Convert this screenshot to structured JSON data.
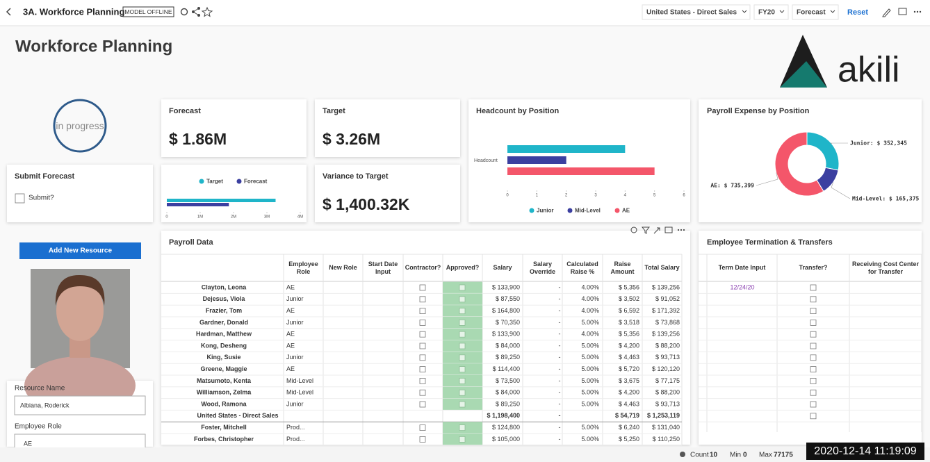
{
  "header": {
    "title": "3A. Workforce Planning",
    "badge": "MODEL OFFLINE",
    "filters": [
      "United States - Direct Sales",
      "FY20",
      "Forecast"
    ],
    "reset": "Reset"
  },
  "page_title": "Workforce Planning",
  "logo_text": "akili",
  "status": "in progress",
  "kpis": {
    "forecast": {
      "label": "Forecast",
      "value": "$ 1.86M"
    },
    "target": {
      "label": "Target",
      "value": "$ 3.26M"
    },
    "variance": {
      "label": "Variance to Target",
      "value": "$ 1,400.32K"
    }
  },
  "submit": {
    "title": "Submit Forecast",
    "checkbox": "Submit?"
  },
  "target_chart": {
    "type": "bar",
    "orientation": "horizontal",
    "series": [
      {
        "name": "Target",
        "color": "#1fb5c9",
        "values": [
          3.26
        ]
      },
      {
        "name": "Forecast",
        "color": "#3b3fa0",
        "values": [
          1.86
        ]
      }
    ],
    "xlim": [
      0,
      4
    ],
    "xticks": [
      0,
      {
        "value": 1,
        "label": "1M"
      },
      {
        "value": 2,
        "label": "2M"
      },
      {
        "value": 3,
        "label": "3M"
      },
      {
        "value": 4,
        "label": "4M"
      }
    ],
    "legend": "top"
  },
  "headcount_chart": {
    "type": "bar",
    "orientation": "horizontal",
    "title": "Headcount by Position",
    "categories": [
      "Headcount"
    ],
    "series": [
      {
        "name": "Junior",
        "color": "#1fb5c9",
        "values": [
          4
        ]
      },
      {
        "name": "Mid-Level",
        "color": "#3b3fa0",
        "values": [
          2
        ]
      },
      {
        "name": "AE",
        "color": "#f4566a",
        "values": [
          5
        ]
      }
    ],
    "xlim": [
      0,
      6
    ],
    "xticks": [
      0,
      1,
      2,
      3,
      4,
      5,
      6
    ],
    "legend": "bottom"
  },
  "payroll_chart": {
    "type": "donut",
    "title": "Payroll Expense by Position",
    "categories": [
      "Junior",
      "Mid-Level",
      "AE"
    ],
    "values": [
      352345,
      165375,
      735399
    ],
    "value_labels": [
      "Junior: $ 352,345",
      "Mid-Level: $ 165,375",
      "AE: $ 735,399"
    ],
    "colors": [
      "#1fb5c9",
      "#3b3fa0",
      "#f4566a"
    ]
  },
  "left_panel": {
    "button": "Add New Resource",
    "resource_name_label": "Resource Name",
    "resource_name": "Albiana, Roderick",
    "employee_role_label": "Employee Role",
    "employee_role": "AE"
  },
  "payroll_table": {
    "title": "Payroll Data",
    "headers": [
      "Employee Role",
      "New Role",
      "Start Date Input",
      "Contractor?",
      "Approved?",
      "Salary",
      "Salary Override",
      "Calculated Raise %",
      "Raise Amount",
      "Total Salary"
    ],
    "rows": [
      {
        "name": "Clayton, Leona",
        "role": "AE",
        "salary": "$ 133,900",
        "override": "-",
        "raise_pct": "4.00%",
        "raise_amount": "$ 5,356",
        "total": "$ 139,256"
      },
      {
        "name": "Dejesus, Viola",
        "role": "Junior",
        "salary": "$ 87,550",
        "override": "-",
        "raise_pct": "4.00%",
        "raise_amount": "$ 3,502",
        "total": "$ 91,052"
      },
      {
        "name": "Frazier, Tom",
        "role": "AE",
        "salary": "$ 164,800",
        "override": "-",
        "raise_pct": "4.00%",
        "raise_amount": "$ 6,592",
        "total": "$ 171,392"
      },
      {
        "name": "Gardner, Donald",
        "role": "Junior",
        "salary": "$ 70,350",
        "override": "-",
        "raise_pct": "5.00%",
        "raise_amount": "$ 3,518",
        "total": "$ 73,868"
      },
      {
        "name": "Hardman, Matthew",
        "role": "AE",
        "salary": "$ 133,900",
        "override": "-",
        "raise_pct": "4.00%",
        "raise_amount": "$ 5,356",
        "total": "$ 139,256"
      },
      {
        "name": "Kong, Desheng",
        "role": "AE",
        "salary": "$ 84,000",
        "override": "-",
        "raise_pct": "5.00%",
        "raise_amount": "$ 4,200",
        "total": "$ 88,200"
      },
      {
        "name": "King, Susie",
        "role": "Junior",
        "salary": "$ 89,250",
        "override": "-",
        "raise_pct": "5.00%",
        "raise_amount": "$ 4,463",
        "total": "$ 93,713"
      },
      {
        "name": "Greene, Maggie",
        "role": "AE",
        "salary": "$ 114,400",
        "override": "-",
        "raise_pct": "5.00%",
        "raise_amount": "$ 5,720",
        "total": "$ 120,120"
      },
      {
        "name": "Matsumoto, Kenta",
        "role": "Mid-Level",
        "salary": "$ 73,500",
        "override": "-",
        "raise_pct": "5.00%",
        "raise_amount": "$ 3,675",
        "total": "$ 77,175"
      },
      {
        "name": "Williamson, Zelma",
        "role": "Mid-Level",
        "salary": "$ 84,000",
        "override": "-",
        "raise_pct": "5.00%",
        "raise_amount": "$ 4,200",
        "total": "$ 88,200"
      },
      {
        "name": "Wood, Ramona",
        "role": "Junior",
        "salary": "$ 89,250",
        "override": "-",
        "raise_pct": "5.00%",
        "raise_amount": "$ 4,463",
        "total": "$ 93,713"
      },
      {
        "name": "United States - Direct Sales",
        "salary": "$ 1,198,400",
        "override": "-",
        "raise_amount": "$ 54,719",
        "total": "$ 1,253,119"
      },
      {
        "name": "Foster, Mitchell",
        "role": "Prod...",
        "salary": "$ 124,800",
        "override": "-",
        "raise_pct": "5.00%",
        "raise_amount": "$ 6,240",
        "total": "$ 131,040"
      },
      {
        "name": "Forbes, Christopher",
        "role": "Prod...",
        "salary": "$ 105,000",
        "override": "-",
        "raise_pct": "5.00%",
        "raise_amount": "$ 5,250",
        "total": "$ 110,250"
      }
    ]
  },
  "termination_table": {
    "title": "Employee Termination & Transfers",
    "headers": [
      "Term Date Input",
      "Transfer?",
      "Receiving Cost Center for Transfer"
    ],
    "term_date": "12/24/20"
  },
  "status_bar": {
    "count_label": "Count",
    "count": 10,
    "min_label": "Min",
    "min": 0,
    "max_label": "Max",
    "max": 77175
  },
  "timestamp": "2020-12-14 11:19:09"
}
